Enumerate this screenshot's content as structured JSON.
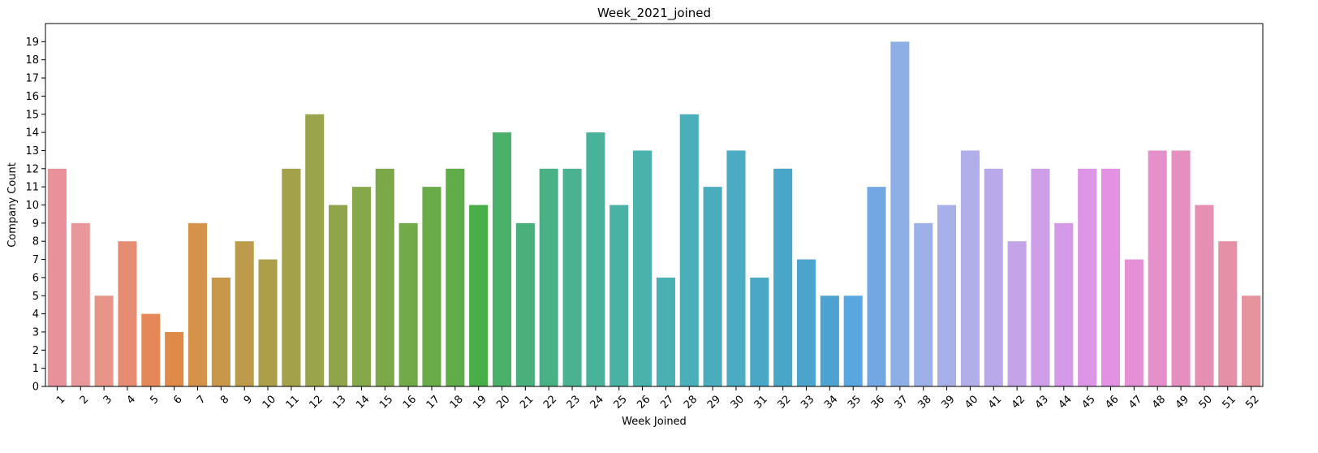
{
  "chart_data": {
    "type": "bar",
    "title": "Week_2021_joined",
    "xlabel": "Week Joined",
    "ylabel": "Company Count",
    "ylim": [
      0,
      20
    ],
    "yticks": [
      0,
      1,
      2,
      3,
      4,
      5,
      6,
      7,
      8,
      9,
      10,
      11,
      12,
      13,
      14,
      15,
      16,
      17,
      18,
      19
    ],
    "grid": false,
    "legend": "none",
    "categories": [
      "1",
      "2",
      "3",
      "4",
      "5",
      "6",
      "7",
      "8",
      "9",
      "10",
      "11",
      "12",
      "13",
      "14",
      "15",
      "16",
      "17",
      "18",
      "19",
      "20",
      "21",
      "22",
      "23",
      "24",
      "25",
      "26",
      "27",
      "28",
      "29",
      "30",
      "31",
      "32",
      "33",
      "34",
      "35",
      "36",
      "37",
      "38",
      "39",
      "40",
      "41",
      "42",
      "43",
      "44",
      "45",
      "46",
      "47",
      "48",
      "49",
      "50",
      "51",
      "52"
    ],
    "values": [
      12,
      9,
      5,
      8,
      4,
      3,
      9,
      6,
      8,
      7,
      12,
      15,
      10,
      11,
      12,
      9,
      11,
      12,
      10,
      14,
      9,
      12,
      12,
      14,
      10,
      13,
      6,
      15,
      11,
      13,
      6,
      12,
      7,
      5,
      5,
      11,
      19,
      9,
      10,
      13,
      12,
      8,
      12,
      9,
      12,
      12,
      7,
      13,
      13,
      10,
      8,
      5
    ],
    "colors": [
      "#e8919a",
      "#e8979a",
      "#e79489",
      "#e68c72",
      "#e48859",
      "#e08a49",
      "#d5924a",
      "#c9974a",
      "#bc9b4a",
      "#ad9f4a",
      "#a3a24a",
      "#9aa44a",
      "#90a54a",
      "#86a74a",
      "#7ca849",
      "#72a949",
      "#69ab49",
      "#5fac48",
      "#49ae48",
      "#4ab06a",
      "#4ab07b",
      "#4ab187",
      "#4ab291",
      "#4ab29b",
      "#4ab2a4",
      "#4ab1ab",
      "#4ab0b2",
      "#4aafb8",
      "#4aadbd",
      "#4aabc2",
      "#4aa8c6",
      "#4aa6c9",
      "#4ba4cc",
      "#4da2cf",
      "#5aa6df",
      "#73a7e3",
      "#8eafe6",
      "#9db1e8",
      "#a8b0e9",
      "#b1aeea",
      "#baa9ea",
      "#c3a4e9",
      "#cc9fe8",
      "#d59ae7",
      "#dd95e6",
      "#e391e3",
      "#e48fd6",
      "#e58fcb",
      "#e58fbf",
      "#e58fb3",
      "#e590a7",
      "#e5939c"
    ]
  }
}
